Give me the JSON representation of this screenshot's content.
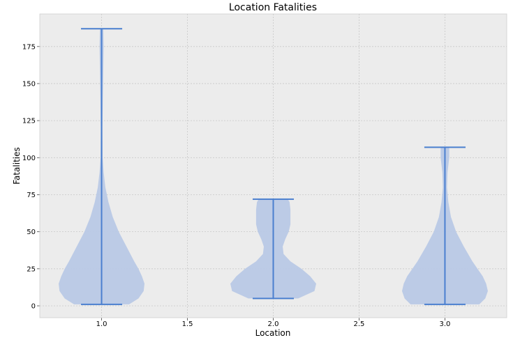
{
  "chart_data": {
    "type": "violin",
    "title": "Location Fatalities",
    "xlabel": "Location",
    "ylabel": "Fatalities",
    "xlim": [
      0.64,
      3.36
    ],
    "ylim": [
      -8,
      197
    ],
    "xticks": [
      1.0,
      1.5,
      2.0,
      2.5,
      3.0
    ],
    "xtick_labels": [
      "1.0",
      "1.5",
      "2.0",
      "2.5",
      "3.0"
    ],
    "yticks": [
      0,
      25,
      50,
      75,
      100,
      125,
      150,
      175
    ],
    "ytick_labels": [
      "0",
      "25",
      "50",
      "75",
      "100",
      "125",
      "150",
      "175"
    ],
    "grid": true,
    "colors": {
      "violin_fill": "#b9c9e6",
      "lines": "#4a7fcf",
      "plot_bg": "#ececec",
      "grid": "#c8c8c8"
    },
    "violins": [
      {
        "position": 1.0,
        "min": 1,
        "max": 187,
        "profile": [
          [
            1,
            0.16
          ],
          [
            5,
            0.215
          ],
          [
            10,
            0.245
          ],
          [
            15,
            0.25
          ],
          [
            20,
            0.235
          ],
          [
            25,
            0.215
          ],
          [
            30,
            0.19
          ],
          [
            40,
            0.145
          ],
          [
            50,
            0.1
          ],
          [
            60,
            0.065
          ],
          [
            70,
            0.04
          ],
          [
            80,
            0.022
          ],
          [
            90,
            0.012
          ],
          [
            100,
            0.006
          ],
          [
            120,
            0.005
          ],
          [
            140,
            0.007
          ],
          [
            160,
            0.01
          ],
          [
            175,
            0.012
          ],
          [
            187,
            0.01
          ]
        ]
      },
      {
        "position": 2.0,
        "min": 5,
        "max": 72,
        "profile": [
          [
            5,
            0.145
          ],
          [
            10,
            0.24
          ],
          [
            15,
            0.25
          ],
          [
            20,
            0.215
          ],
          [
            25,
            0.165
          ],
          [
            30,
            0.1
          ],
          [
            35,
            0.06
          ],
          [
            40,
            0.055
          ],
          [
            45,
            0.07
          ],
          [
            50,
            0.09
          ],
          [
            55,
            0.1
          ],
          [
            60,
            0.1
          ],
          [
            65,
            0.1
          ],
          [
            70,
            0.095
          ],
          [
            72,
            0.085
          ]
        ]
      },
      {
        "position": 3.0,
        "min": 1,
        "max": 107,
        "profile": [
          [
            1,
            0.2
          ],
          [
            5,
            0.235
          ],
          [
            10,
            0.25
          ],
          [
            15,
            0.24
          ],
          [
            20,
            0.22
          ],
          [
            25,
            0.19
          ],
          [
            30,
            0.16
          ],
          [
            40,
            0.11
          ],
          [
            50,
            0.065
          ],
          [
            60,
            0.035
          ],
          [
            70,
            0.02
          ],
          [
            80,
            0.012
          ],
          [
            90,
            0.015
          ],
          [
            100,
            0.025
          ],
          [
            107,
            0.025
          ]
        ]
      }
    ]
  }
}
